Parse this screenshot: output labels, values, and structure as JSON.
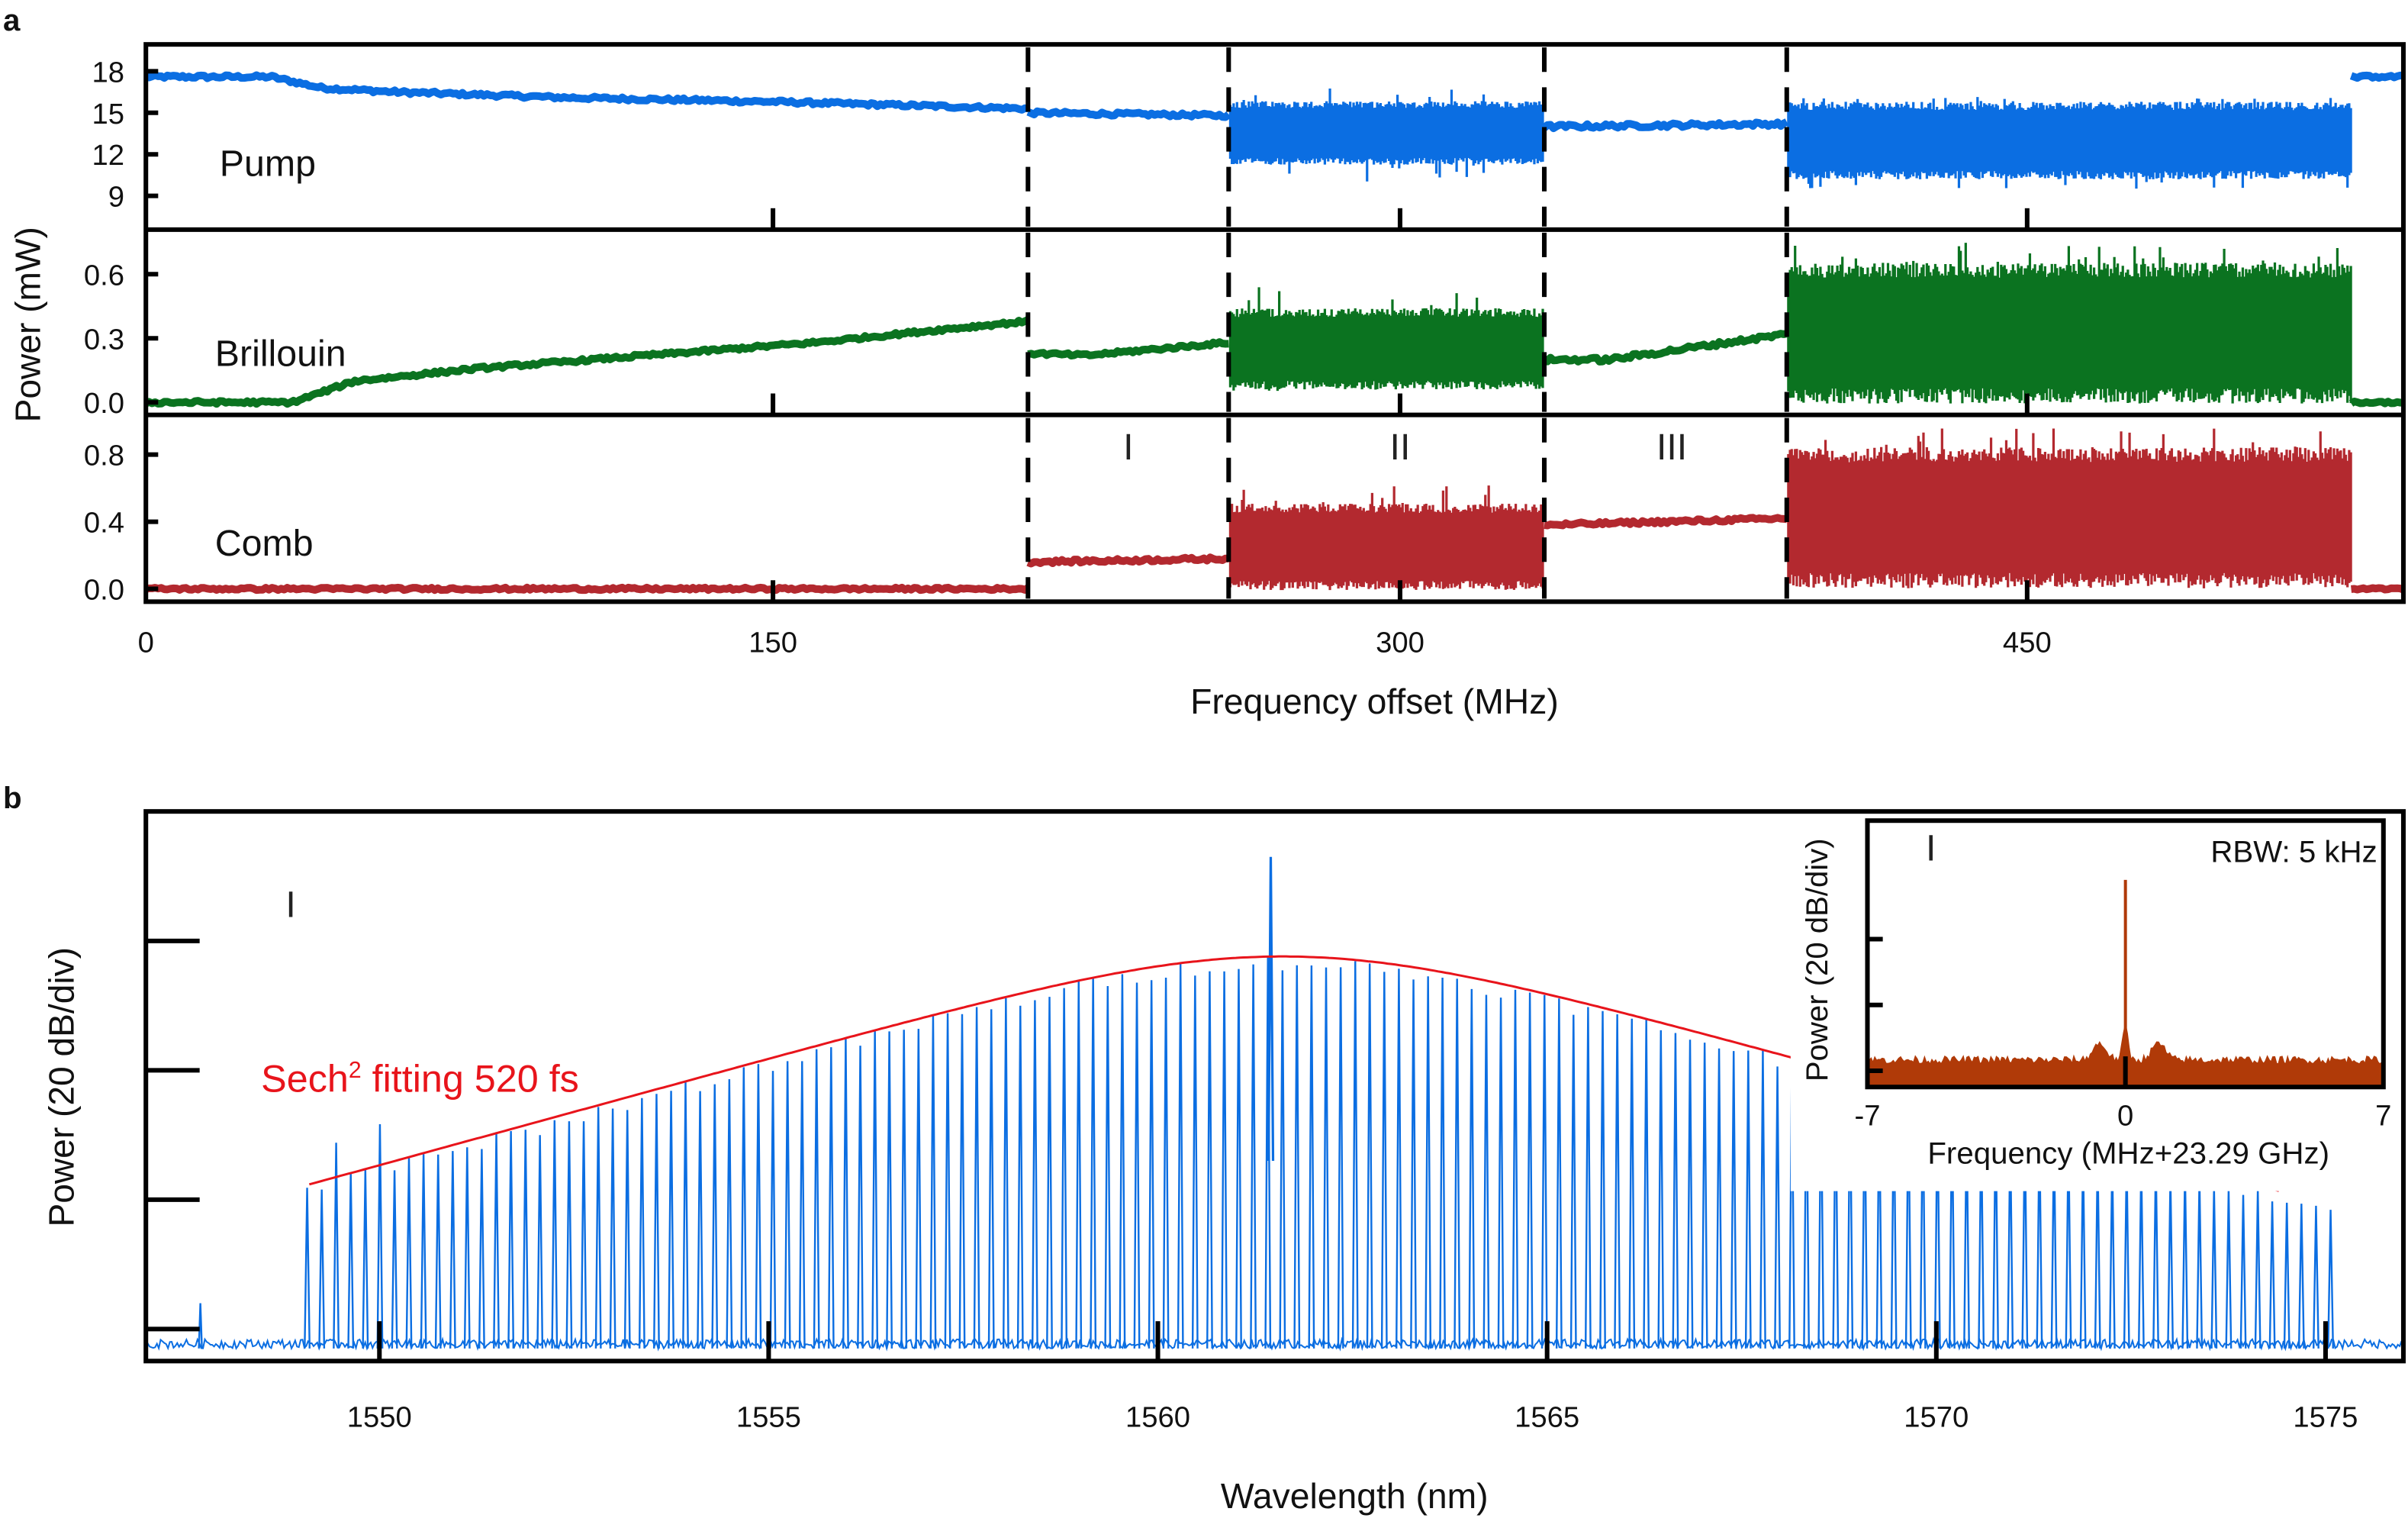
{
  "chart_data": [
    {
      "id": "a",
      "panel_label": "a",
      "type": "line",
      "xlabel": "Frequency offset (MHz)",
      "ylabel": "Power (mW)",
      "xlim": [
        0,
        540
      ],
      "xticks": [
        0,
        150,
        300,
        450
      ],
      "xtick_labels": [
        "0",
        "150",
        "300",
        "450"
      ],
      "boundaries": [
        211,
        259,
        334.5,
        392.5
      ],
      "regions": [
        {
          "label": "I",
          "x": 235
        },
        {
          "label": "II",
          "x": 300
        },
        {
          "label": "III",
          "x": 365
        }
      ],
      "drop_point": 527.5,
      "subplots": [
        {
          "name": "Pump",
          "color": "#0b6ee2",
          "ylim": [
            7,
            19.5
          ],
          "yticks": [
            9,
            12,
            15,
            18
          ],
          "ytick_labels": [
            "9",
            "12",
            "15",
            "18"
          ],
          "segments": [
            {
              "x": [
                0,
                30,
                42,
                60,
                100,
                150,
                211
              ],
              "y": [
                17.6,
                17.6,
                16.8,
                16.5,
                16.1,
                15.8,
                15.3
              ],
              "spread": 0.25
            },
            {
              "x": [
                211,
                259
              ],
              "y": [
                15.0,
                14.8
              ],
              "spread": 0.25
            },
            {
              "x": [
                259,
                334.5
              ],
              "y_low": 11.5,
              "y_high": 15.6,
              "spike_low": 10.0,
              "spike_high": 16.8,
              "noisy": true
            },
            {
              "x": [
                334.5,
                392.5
              ],
              "y": [
                14.0,
                14.2
              ],
              "spread": 0.3
            },
            {
              "x": [
                392.5,
                527.5
              ],
              "y_low": 10.5,
              "y_high": 15.5,
              "spike_low": 9.5,
              "spike_high": 16.2,
              "noisy": true
            },
            {
              "x": [
                527.5,
                540
              ],
              "y": [
                17.6,
                17.6
              ],
              "spread": 0.2
            }
          ]
        },
        {
          "name": "Brillouin",
          "color": "#0b7320",
          "ylim": [
            -0.03,
            0.78
          ],
          "yticks": [
            0.0,
            0.3,
            0.6
          ],
          "ytick_labels": [
            "0.0",
            "0.3",
            "0.6"
          ],
          "segments": [
            {
              "x": [
                0,
                35,
                50,
                80,
                120,
                160,
                190,
                211
              ],
              "y": [
                0.0,
                0.0,
                0.1,
                0.16,
                0.22,
                0.28,
                0.34,
                0.38
              ],
              "spread": 0.015
            },
            {
              "x": [
                211,
                225,
                259
              ],
              "y": [
                0.23,
                0.22,
                0.28
              ],
              "spread": 0.015
            },
            {
              "x": [
                259,
                334.5
              ],
              "y_low": 0.08,
              "y_high": 0.42,
              "spike_low": 0.05,
              "spike_high": 0.55,
              "noisy": true
            },
            {
              "x": [
                334.5,
                350,
                392.5
              ],
              "y": [
                0.2,
                0.2,
                0.32
              ],
              "spread": 0.02
            },
            {
              "x": [
                392.5,
                527.5
              ],
              "y_low": 0.03,
              "y_high": 0.62,
              "spike_low": 0.01,
              "spike_high": 0.75,
              "noisy": true
            },
            {
              "x": [
                527.5,
                540
              ],
              "y": [
                0.0,
                0.0
              ],
              "spread": 0.01
            }
          ]
        },
        {
          "name": "Comb",
          "color": "#b3292f",
          "ylim": [
            -0.04,
            1.0
          ],
          "yticks": [
            0.0,
            0.4,
            0.8
          ],
          "ytick_labels": [
            "0.0",
            "0.4",
            "0.8"
          ],
          "segments": [
            {
              "x": [
                0,
                211
              ],
              "y": [
                0.0,
                0.0
              ],
              "spread": 0.015
            },
            {
              "x": [
                211,
                259
              ],
              "y": [
                0.16,
                0.18
              ],
              "spread": 0.02
            },
            {
              "x": [
                259,
                334.5
              ],
              "y_low": 0.02,
              "y_high": 0.48,
              "spike_low": 0.0,
              "spike_high": 0.62,
              "noisy": true
            },
            {
              "x": [
                334.5,
                392.5
              ],
              "y": [
                0.38,
                0.42
              ],
              "spread": 0.02
            },
            {
              "x": [
                392.5,
                527.5
              ],
              "y_low": 0.05,
              "y_high": 0.8,
              "spike_low": 0.0,
              "spike_high": 0.96,
              "noisy": true
            },
            {
              "x": [
                527.5,
                540
              ],
              "y": [
                0.0,
                0.0
              ],
              "spread": 0.01
            }
          ]
        }
      ]
    },
    {
      "id": "b",
      "panel_label": "b",
      "type": "line",
      "xlabel": "Wavelength (nm)",
      "ylabel": "Power (20 dB/div)",
      "xlim": [
        1547.0,
        1576.0
      ],
      "xticks": [
        1550,
        1555,
        1560,
        1565,
        1570,
        1575
      ],
      "xtick_labels": [
        "1550",
        "1555",
        "1560",
        "1565",
        "1570",
        "1575"
      ],
      "ylim_div": [
        0,
        4.1
      ],
      "ytick_divs": [
        0.2,
        1.2,
        2.2,
        3.2
      ],
      "region_label": "I",
      "series": [
        {
          "name": "Comb spectrum",
          "color": "#0b6ee2",
          "line_spacing_nm": 0.187,
          "center_nm": 1561.6,
          "peak_div": 3.8,
          "pump_line_nm": 1561.45,
          "pump_line_div": 3.85,
          "noise_floor_div": 0.05,
          "extent_nm": [
            1548.9,
            1575.2
          ]
        },
        {
          "name": "Sech2 fit",
          "color": "#e8141b",
          "center_nm": 1561.6,
          "peak_div": 3.08,
          "width_nm": 5.0
        }
      ],
      "annotations": [
        {
          "text": "Sech",
          "sup": "2",
          "rest": " fitting 520 fs",
          "color": "#e8141b"
        }
      ],
      "inset": {
        "type": "line",
        "region_label": "I",
        "note": "RBW: 5 kHz",
        "xlabel": "Frequency (MHz+23.29 GHz)",
        "ylabel": "Power (20 dB/div)",
        "xlim": [
          -7,
          7
        ],
        "xticks": [
          -7,
          0,
          7
        ],
        "xtick_labels": [
          "-7",
          "0",
          "7"
        ],
        "ytick_divs": [
          0.2,
          1.2,
          2.2
        ],
        "color": "#b03a08",
        "peak_x": 0,
        "peak_div": 2.9,
        "noise_floor_div": 0.3,
        "sidebands": [
          {
            "x": -0.7,
            "div": 0.55
          },
          {
            "x": 0.9,
            "div": 0.55
          }
        ]
      }
    }
  ],
  "labels": {
    "panel_a": "a",
    "panel_b": "b"
  }
}
